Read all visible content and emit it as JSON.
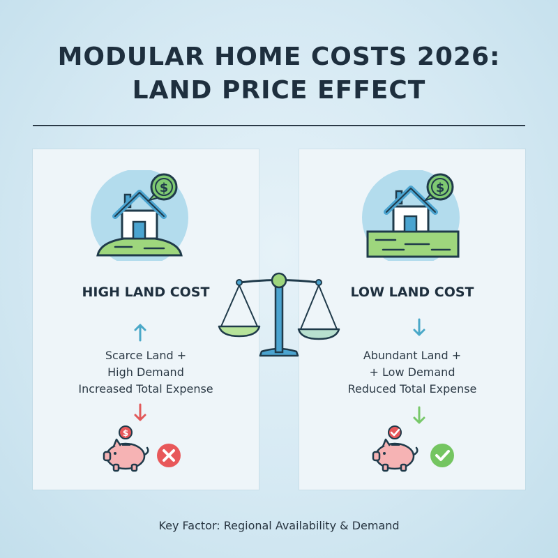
{
  "title": {
    "line1": "MODULAR HOME COSTS 2026:",
    "line2": "LAND PRICE EFFECT"
  },
  "left_panel": {
    "heading": "HIGH LAND COST",
    "lines": [
      "Scarce Land +",
      "High Demand",
      "Increased Total Expense"
    ],
    "colors": {
      "arrow_up": "#4aa8c8",
      "arrow_down": "#e2595a",
      "status": "#e8585a"
    }
  },
  "right_panel": {
    "heading": "LOW LAND COST",
    "lines": [
      "Abundant Land +",
      "+ Low Demand",
      "Reduced Total Expense"
    ],
    "colors": {
      "arrow_down_1": "#4aa8c8",
      "arrow_down_2": "#78c86a",
      "status": "#74c561"
    }
  },
  "footer": "Key Factor: Regional Availability & Demand",
  "icons": [
    "house-icon",
    "dollar-coin-icon",
    "balance-scale-icon",
    "piggy-bank-icon",
    "x-circle-icon",
    "check-circle-icon",
    "arrow-up-icon",
    "arrow-down-icon"
  ]
}
